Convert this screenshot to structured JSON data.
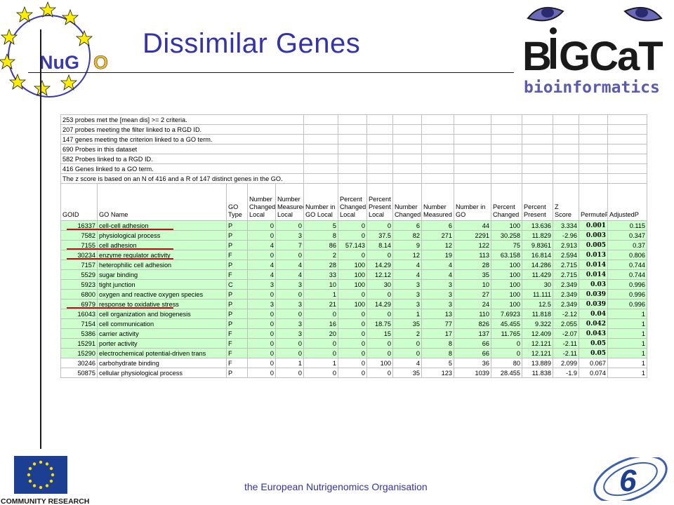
{
  "slide": {
    "title": "Dissimilar Genes",
    "footer": "the European Nutrigenomics Organisation"
  },
  "logos": {
    "nugo_text": "NuGO",
    "bigcat_text": "BiGCaT",
    "bigcat_subtext": "bioinformatics",
    "eu_text": "COMMUNITY RESEARCH",
    "fp6_text": "6"
  },
  "spreadsheet": {
    "info_lines": [
      "253 probes met the [mean dis] >= 2 criteria.",
      "207 probes meeting the filter linked to a RGD ID.",
      "147 genes meeting the criterion linked to a GO term.",
      "690 Probes in this dataset",
      "582 Probes linked to a RGD ID.",
      "416 Genes linked to a GO term.",
      "The z score is based on an N of 416 and a R of 147 distinct genes in the GO."
    ],
    "headers": [
      "GOID",
      "GO Name",
      "GO Type",
      "Number Changed Local",
      "Number Measured Local",
      "Number in GO Local",
      "Percent Changed Local",
      "Percent Present Local",
      "Number Changed",
      "Number Measured",
      "Number in GO",
      "Percent Changed",
      "Percent Present",
      "Z Score",
      "PermuteP",
      "AdjustedP"
    ],
    "rows": [
      {
        "green": true,
        "cells": [
          "16337",
          "cell-cell adhesion",
          "P",
          "0",
          "0",
          "5",
          "0",
          "0",
          "6",
          "6",
          "44",
          "100",
          "13.636",
          "3.334",
          "0.001",
          "0.115"
        ]
      },
      {
        "green": true,
        "cells": [
          "7582",
          "physiological process",
          "P",
          "0",
          "3",
          "8",
          "0",
          "37.5",
          "82",
          "271",
          "2291",
          "30.258",
          "11.829",
          "-2.96",
          "0.003",
          "0.347"
        ]
      },
      {
        "green": true,
        "cells": [
          "7155",
          "cell adhesion",
          "P",
          "4",
          "7",
          "86",
          "57.143",
          "8.14",
          "9",
          "12",
          "122",
          "75",
          "9.8361",
          "2.913",
          "0.005",
          "0.37"
        ]
      },
      {
        "green": true,
        "cells": [
          "30234",
          "enzyme regulator activity",
          "F",
          "0",
          "0",
          "2",
          "0",
          "0",
          "12",
          "19",
          "113",
          "63.158",
          "16.814",
          "2.594",
          "0.013",
          "0.806"
        ]
      },
      {
        "green": true,
        "cells": [
          "7157",
          "heterophilic cell adhesion",
          "P",
          "4",
          "4",
          "28",
          "100",
          "14.29",
          "4",
          "4",
          "28",
          "100",
          "14.286",
          "2.715",
          "0.014",
          "0.744"
        ]
      },
      {
        "green": true,
        "cells": [
          "5529",
          "sugar binding",
          "F",
          "4",
          "4",
          "33",
          "100",
          "12.12",
          "4",
          "4",
          "35",
          "100",
          "11.429",
          "2.715",
          "0.014",
          "0.744"
        ]
      },
      {
        "green": true,
        "cells": [
          "5923",
          "tight junction",
          "C",
          "3",
          "3",
          "10",
          "100",
          "30",
          "3",
          "3",
          "10",
          "100",
          "30",
          "2.349",
          "0.03",
          "0.996"
        ]
      },
      {
        "green": true,
        "cells": [
          "6800",
          "oxygen and reactive oxygen species",
          "P",
          "0",
          "0",
          "1",
          "0",
          "0",
          "3",
          "3",
          "27",
          "100",
          "11.111",
          "2.349",
          "0.039",
          "0.996"
        ]
      },
      {
        "green": true,
        "cells": [
          "6979",
          "response to oxidative stress",
          "P",
          "3",
          "3",
          "21",
          "100",
          "14.29",
          "3",
          "3",
          "24",
          "100",
          "12.5",
          "2.349",
          "0.039",
          "0.996"
        ]
      },
      {
        "green": true,
        "cells": [
          "16043",
          "cell organization and biogenesis",
          "P",
          "0",
          "0",
          "0",
          "0",
          "0",
          "1",
          "13",
          "110",
          "7.6923",
          "11.818",
          "-2.12",
          "0.04",
          "1"
        ]
      },
      {
        "green": true,
        "cells": [
          "7154",
          "cell communication",
          "P",
          "0",
          "3",
          "16",
          "0",
          "18.75",
          "35",
          "77",
          "826",
          "45.455",
          "9.322",
          "2.055",
          "0.042",
          "1"
        ]
      },
      {
        "green": true,
        "cells": [
          "5386",
          "carrier activity",
          "F",
          "0",
          "3",
          "20",
          "0",
          "15",
          "2",
          "17",
          "137",
          "11.765",
          "12.409",
          "-2.07",
          "0.043",
          "1"
        ]
      },
      {
        "green": true,
        "cells": [
          "15291",
          "porter activity",
          "F",
          "0",
          "0",
          "0",
          "0",
          "0",
          "0",
          "8",
          "66",
          "0",
          "12.121",
          "-2.11",
          "0.05",
          "1"
        ]
      },
      {
        "green": true,
        "cells": [
          "15290",
          "electrochemical potential-driven trans",
          "F",
          "0",
          "0",
          "0",
          "0",
          "0",
          "0",
          "8",
          "66",
          "0",
          "12.121",
          "-2.11",
          "0.05",
          "1"
        ]
      },
      {
        "green": false,
        "cells": [
          "30246",
          "carbohydrate binding",
          "F",
          "0",
          "1",
          "1",
          "0",
          "100",
          "4",
          "5",
          "36",
          "80",
          "13.889",
          "2.099",
          "0.067",
          "1"
        ]
      },
      {
        "green": false,
        "cells": [
          "50875",
          "cellular physiological process",
          "P",
          "0",
          "0",
          "0",
          "0",
          "0",
          "35",
          "123",
          "1039",
          "28.455",
          "11.838",
          "-1.9",
          "0.074",
          "1"
        ]
      }
    ],
    "underlined_rows": [
      0,
      2,
      3,
      8
    ]
  },
  "colors": {
    "title": "#3333aa",
    "highlight_row": "#ccffcc",
    "underline": "#b01818"
  }
}
